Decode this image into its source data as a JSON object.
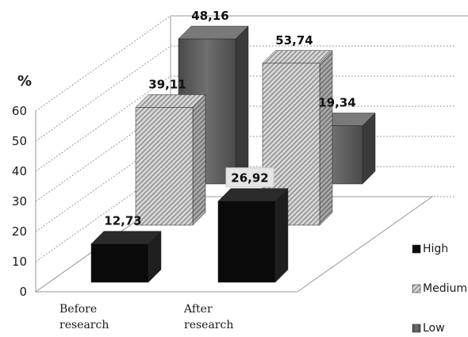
{
  "chart_data": {
    "type": "bar",
    "title": "",
    "xlabel": "",
    "ylabel": "%",
    "ylim": [
      0,
      60
    ],
    "yticks": [
      0,
      10,
      20,
      30,
      40,
      50,
      60
    ],
    "grid": true,
    "legend_position": "right",
    "categories": [
      {
        "line1": "Before",
        "line2": "research"
      },
      {
        "line1": "After",
        "line2": "research"
      }
    ],
    "series": [
      {
        "name": "High",
        "values": [
          12.73,
          26.92
        ],
        "labels": [
          "12,73",
          "26,92"
        ],
        "color": "#0a0a0a"
      },
      {
        "name": "Medium",
        "values": [
          39.11,
          53.74
        ],
        "labels": [
          "39,11",
          "53,74"
        ],
        "color": "#bdbdbd"
      },
      {
        "name": "Low",
        "values": [
          48.16,
          19.34
        ],
        "labels": [
          "48,16",
          "19,34"
        ],
        "color": "#5a5a5a"
      }
    ]
  }
}
